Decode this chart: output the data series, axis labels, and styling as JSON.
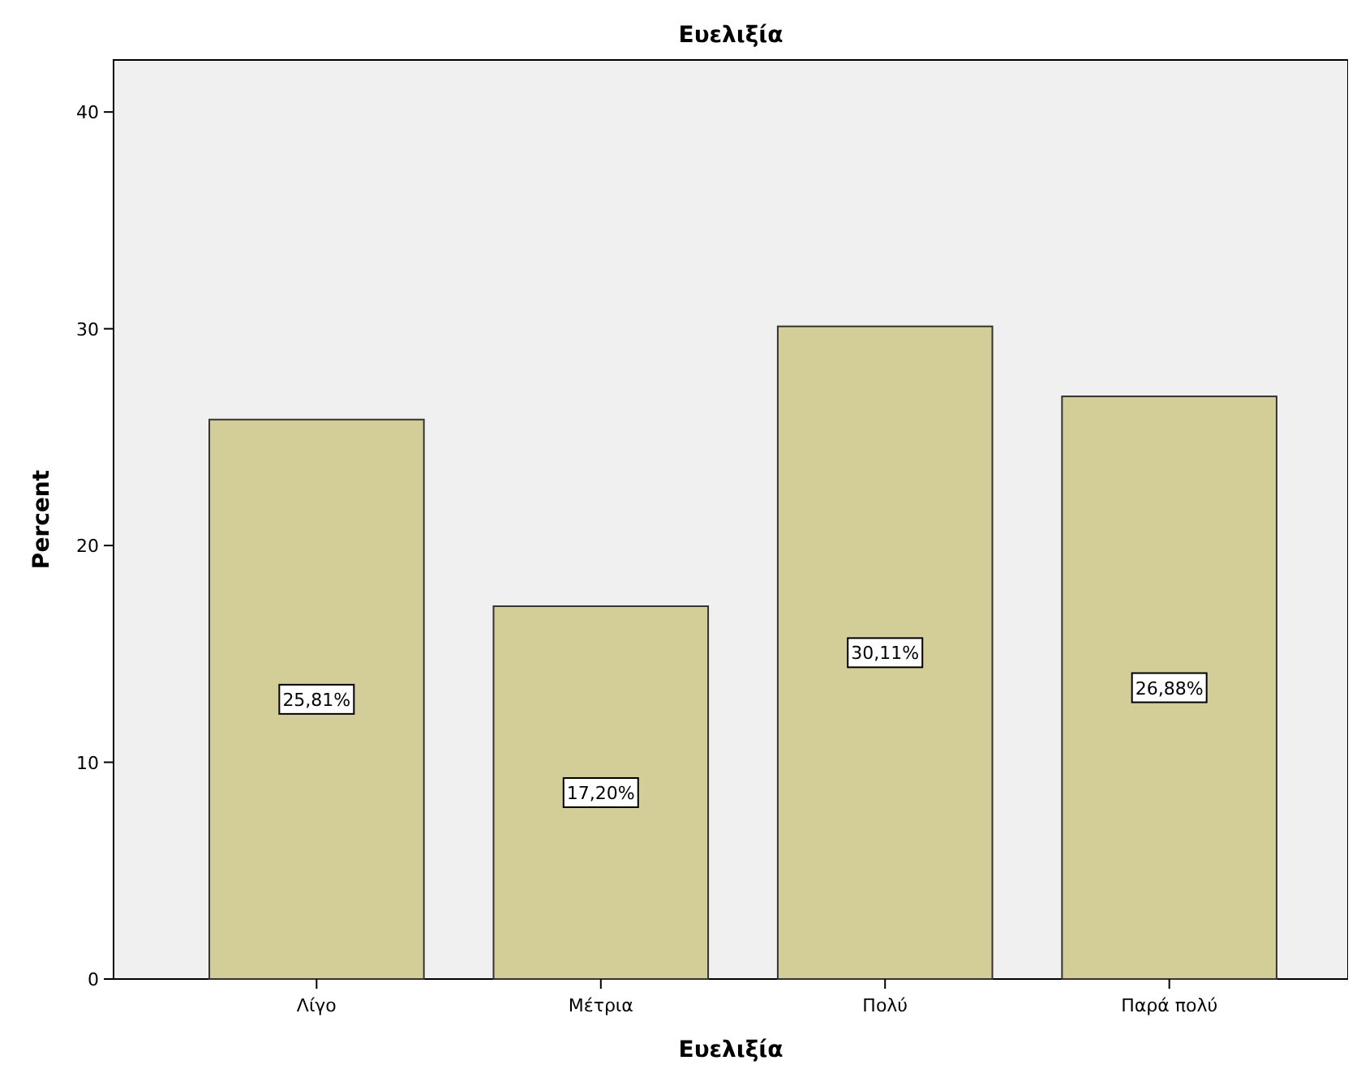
{
  "chart_data": {
    "type": "bar",
    "title": "Ευελιξία",
    "xlabel": "Ευελιξία",
    "ylabel": "Percent",
    "categories": [
      "Λίγο",
      "Μέτρια",
      "Πολύ",
      "Παρά πολύ"
    ],
    "values": [
      25.81,
      17.2,
      30.11,
      26.88
    ],
    "value_labels": [
      "25,81%",
      "17,20%",
      "30,11%",
      "26,88%"
    ],
    "color": "#d3ce97",
    "ylim": [
      0,
      42.4
    ],
    "yticks": [
      0,
      10,
      20,
      30,
      40
    ],
    "grid": false
  }
}
